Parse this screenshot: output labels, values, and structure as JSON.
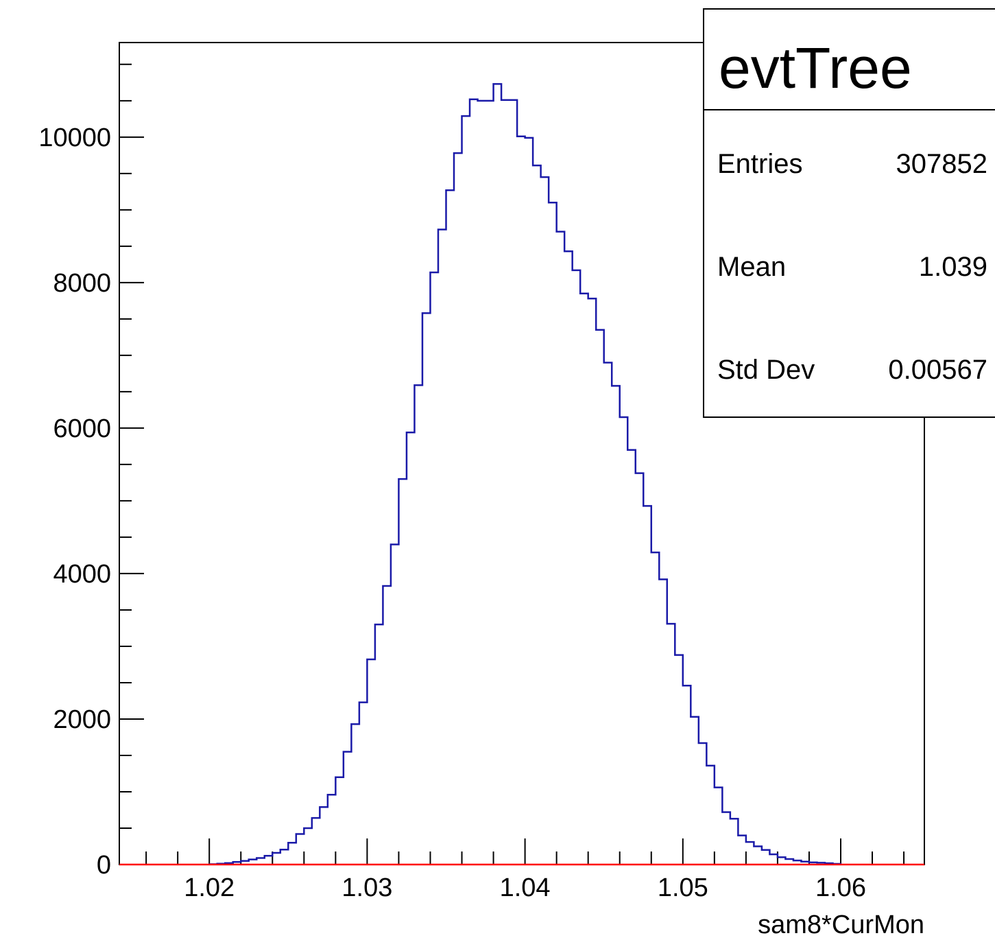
{
  "chart_data": {
    "type": "bar",
    "histogram": true,
    "title": "",
    "xlabel": "sam8*CurMon",
    "ylabel": "",
    "xlim": [
      1.0143,
      1.0653
    ],
    "ylim": [
      0,
      11300
    ],
    "bin_start": 1.02,
    "bin_width": 0.0005,
    "x_ticks": [
      "1.02",
      "1.03",
      "1.04",
      "1.05",
      "1.06"
    ],
    "y_ticks": [
      "0",
      "2000",
      "4000",
      "6000",
      "8000",
      "10000"
    ],
    "values": [
      5,
      12,
      20,
      35,
      50,
      70,
      90,
      120,
      160,
      205,
      300,
      420,
      500,
      640,
      790,
      960,
      1200,
      1550,
      1930,
      2230,
      2820,
      3300,
      3830,
      4400,
      5300,
      5940,
      6590,
      7580,
      8140,
      8730,
      9270,
      9780,
      10290,
      10520,
      10500,
      10500,
      10730,
      10510,
      10510,
      10010,
      9990,
      9610,
      9450,
      9100,
      8700,
      8430,
      8170,
      7850,
      7780,
      7350,
      6900,
      6580,
      6150,
      5700,
      5380,
      4930,
      4290,
      3920,
      3310,
      2880,
      2460,
      2030,
      1670,
      1360,
      1060,
      720,
      630,
      400,
      310,
      250,
      200,
      140,
      100,
      75,
      55,
      40,
      30,
      25,
      18,
      10
    ],
    "line_color": "#1a1aa8",
    "zero_line_color": "#ff0000",
    "grid": false,
    "legend": "none"
  },
  "stats_box": {
    "title": "evtTree",
    "rows": [
      {
        "label": "Entries",
        "value": "307852"
      },
      {
        "label": "Mean",
        "value": "1.039"
      },
      {
        "label": "Std Dev",
        "value": "0.00567"
      }
    ],
    "placement": "top-right"
  }
}
